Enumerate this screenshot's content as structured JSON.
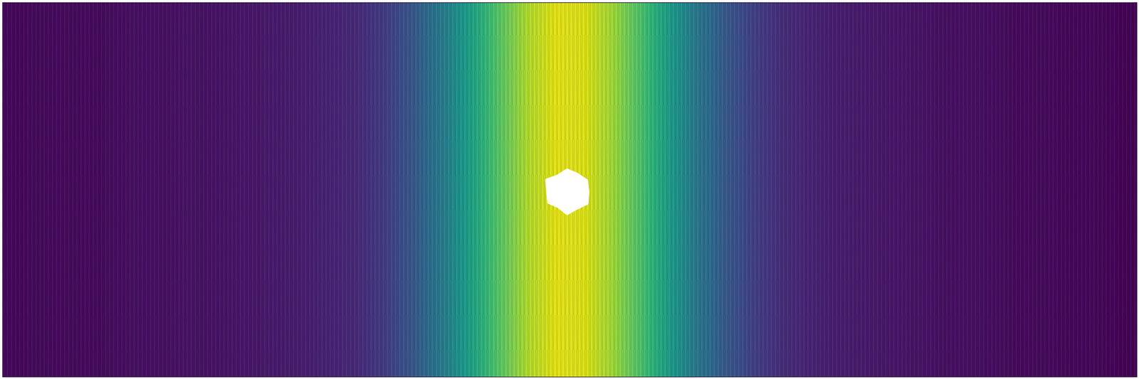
{
  "chart_data": {
    "type": "heatmap",
    "cells": [
      0.02,
      0.03,
      0.03,
      0.03,
      0.04,
      0.04,
      0.05,
      0.05,
      0.06,
      0.07,
      0.08,
      0.1,
      0.12,
      0.18,
      0.28,
      0.42,
      0.58,
      0.74,
      0.88,
      0.96,
      0.95,
      0.86,
      0.72,
      0.56,
      0.4,
      0.28,
      0.19,
      0.13,
      0.1,
      0.08,
      0.07,
      0.06,
      0.05,
      0.04,
      0.04,
      0.03,
      0.03,
      0.02,
      0.02,
      0.01
    ],
    "zlim": [
      0,
      1
    ],
    "color": "viridis",
    "tick_labels": false
  }
}
